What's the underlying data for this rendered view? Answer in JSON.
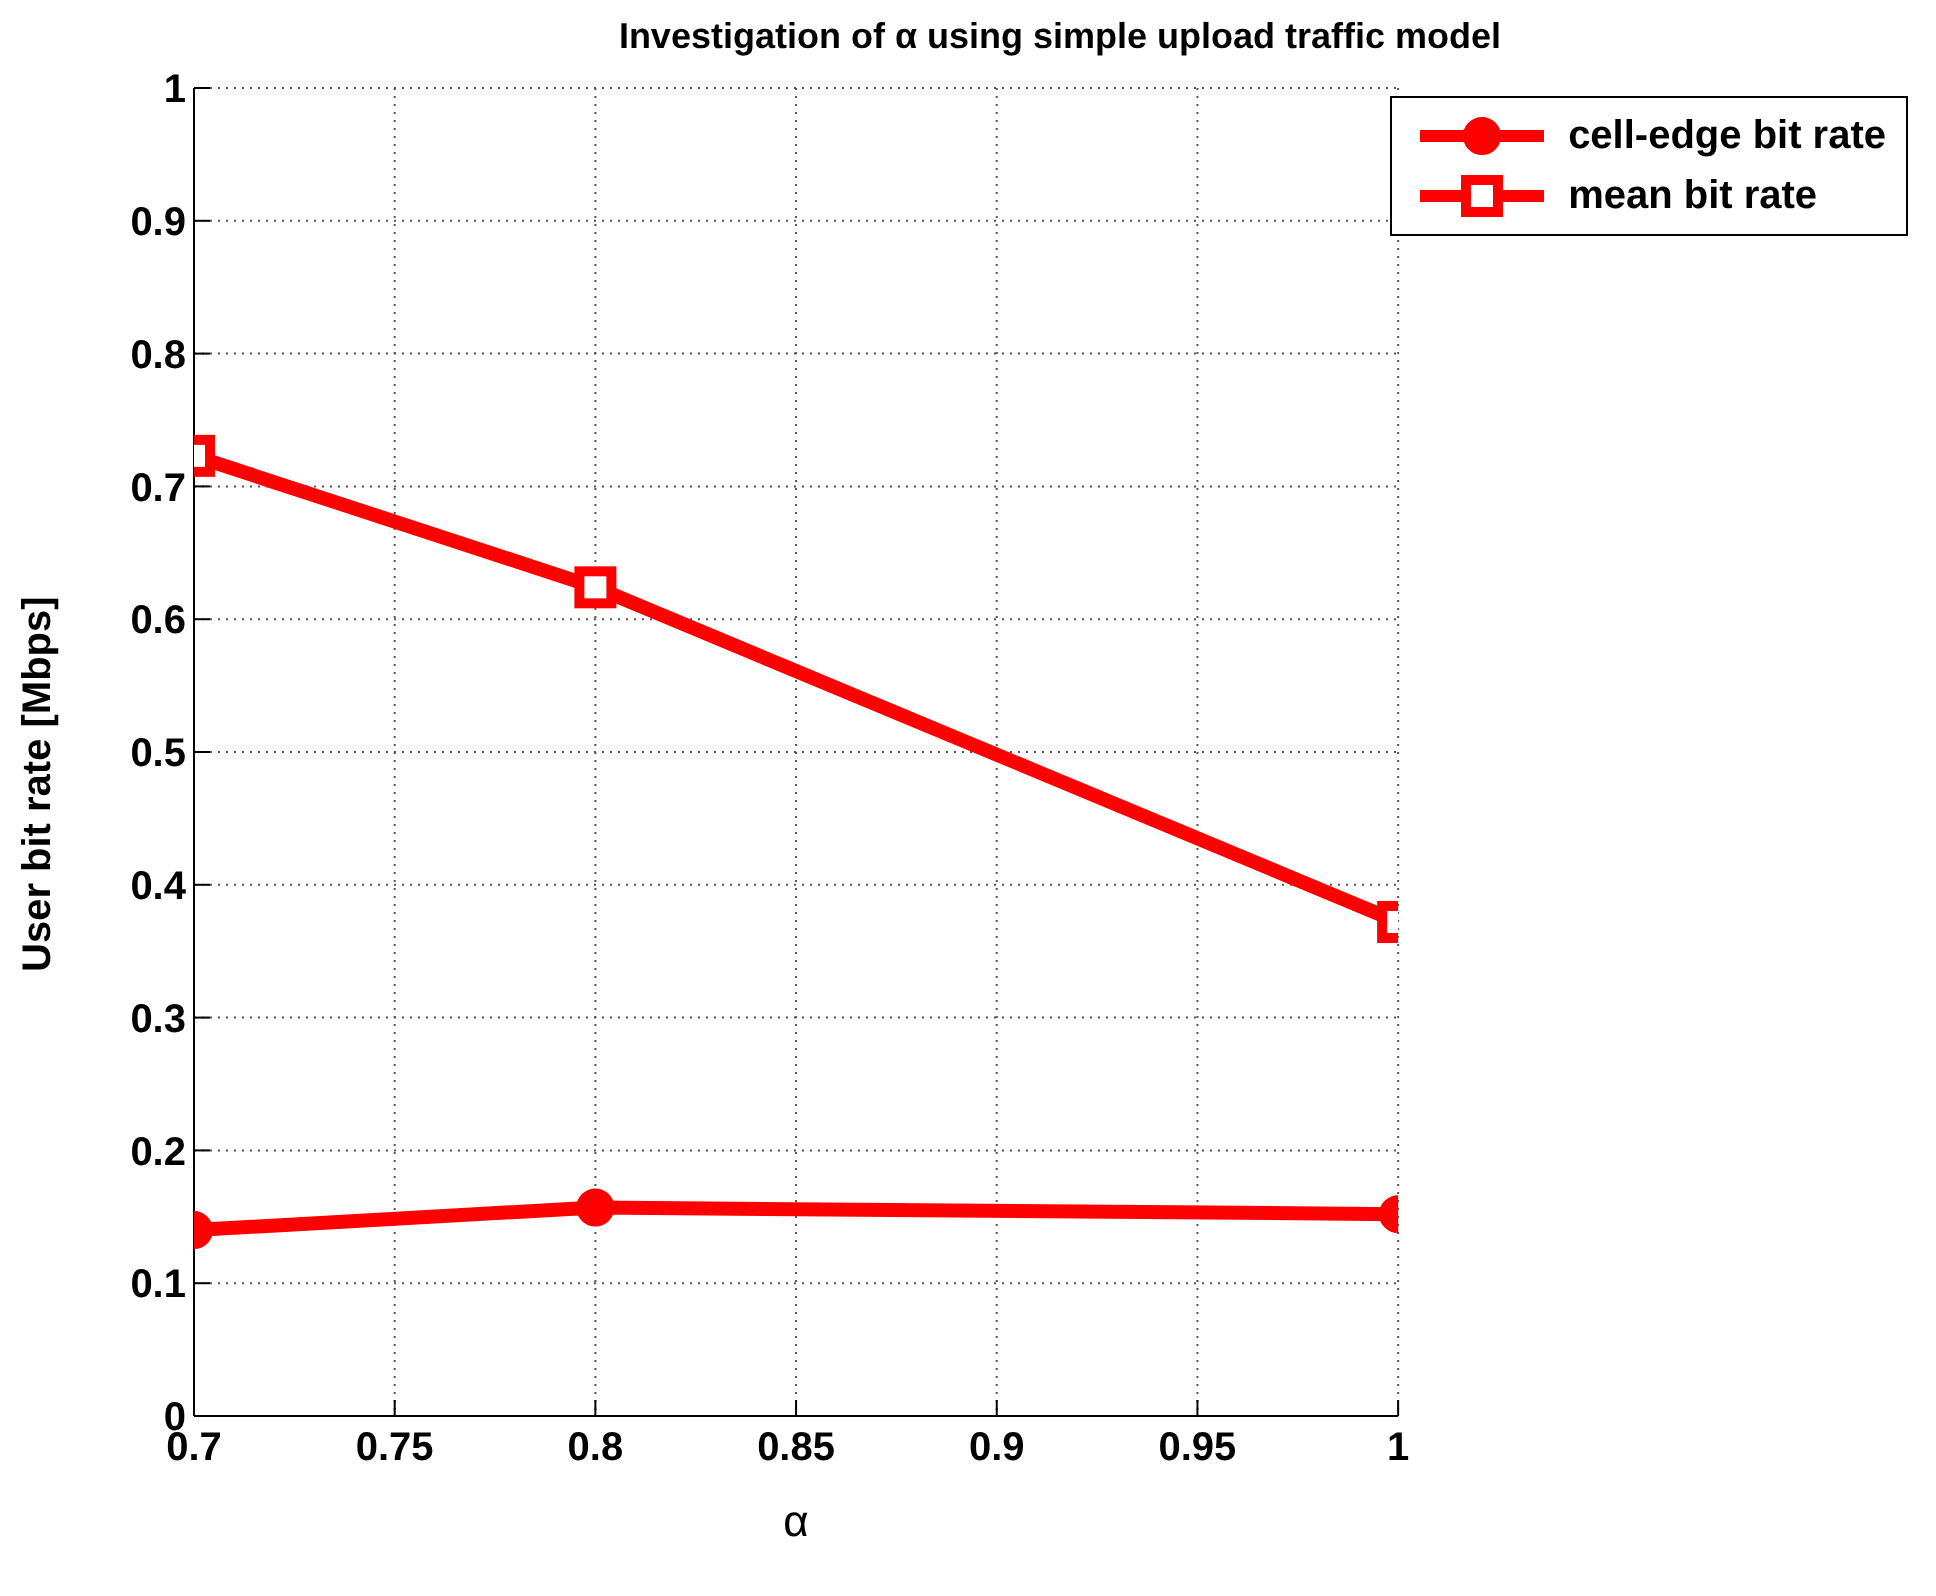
{
  "chart_data": {
    "type": "line",
    "title": "Investigation of α using simple upload traffic model",
    "xlabel": "α",
    "ylabel": "User bit rate [Mbps]",
    "x": [
      0.7,
      0.8,
      1
    ],
    "series": [
      {
        "name": "cell-edge bit rate",
        "color": "#ff0000",
        "marker": "circle",
        "values": [
          0.14,
          0.157,
          0.152
        ]
      },
      {
        "name": "mean bit rate",
        "color": "#ff0000",
        "marker": "square",
        "values": [
          0.723,
          0.624,
          0.372
        ]
      }
    ],
    "xlim": [
      0.7,
      1
    ],
    "xticks": [
      0.7,
      0.75,
      0.8,
      0.85,
      0.9,
      0.95,
      1
    ],
    "ylim": [
      0,
      1
    ],
    "yticks": [
      0,
      0.1,
      0.2,
      0.3,
      0.4,
      0.5,
      0.6,
      0.7,
      0.8,
      0.9,
      1
    ],
    "grid": true,
    "legend": "top right",
    "line_style": "solid"
  }
}
